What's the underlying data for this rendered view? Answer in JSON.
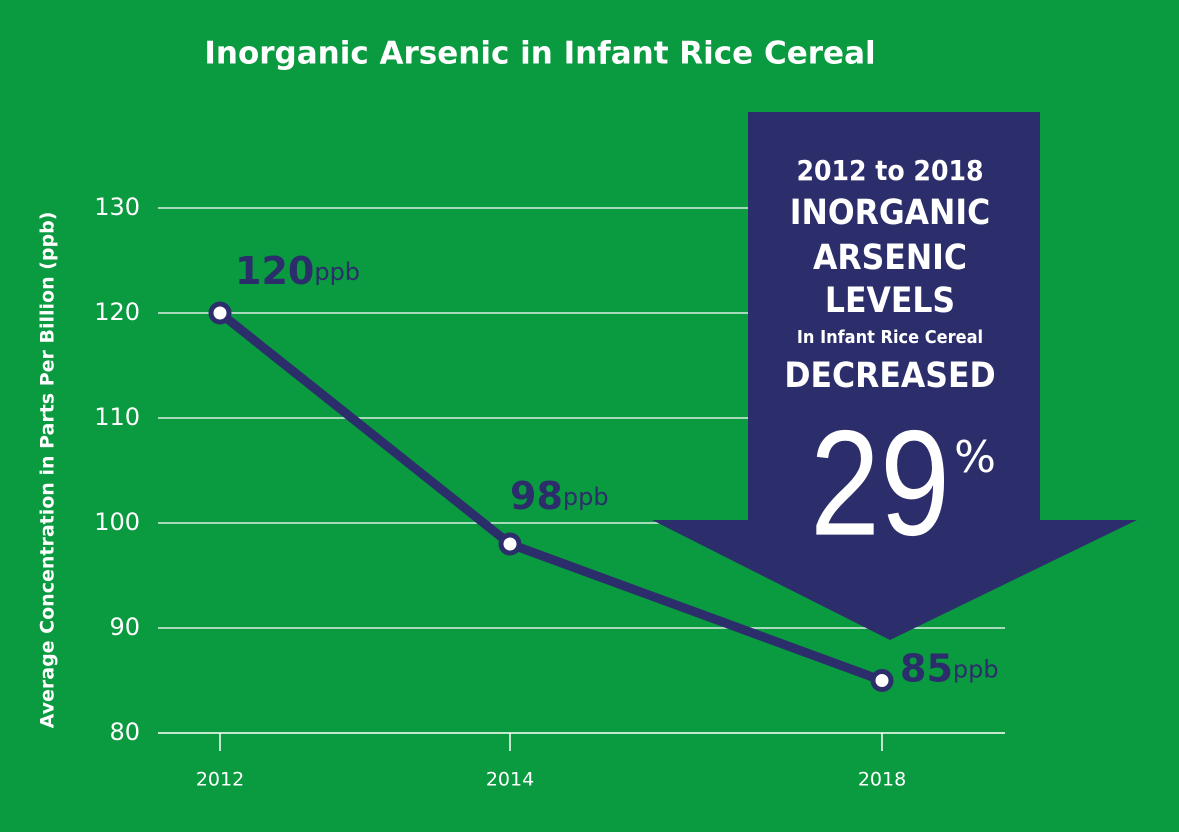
{
  "chart_data": {
    "type": "line",
    "title": "Inorganic Arsenic in Infant Rice Cereal",
    "y_label": "Average Concentration  in Parts Per Billion (ppb)",
    "categories": [
      "2012",
      "2014",
      "2018"
    ],
    "series": [
      {
        "color": "#2c2d6b",
        "values": [
          120,
          98,
          85
        ]
      }
    ],
    "value_unit": "ppb",
    "ylim": [
      80,
      130
    ],
    "yticks": [
      80,
      90,
      100,
      110,
      120,
      130
    ],
    "grid": true,
    "annotation": {
      "lines": [
        "2012 to 2018",
        "INORGANIC",
        "ARSENIC",
        "LEVELS",
        "In Infant Rice Cereal",
        "DECREASED"
      ],
      "number": "29",
      "sign": "%",
      "color": "#2c2d6b"
    }
  }
}
